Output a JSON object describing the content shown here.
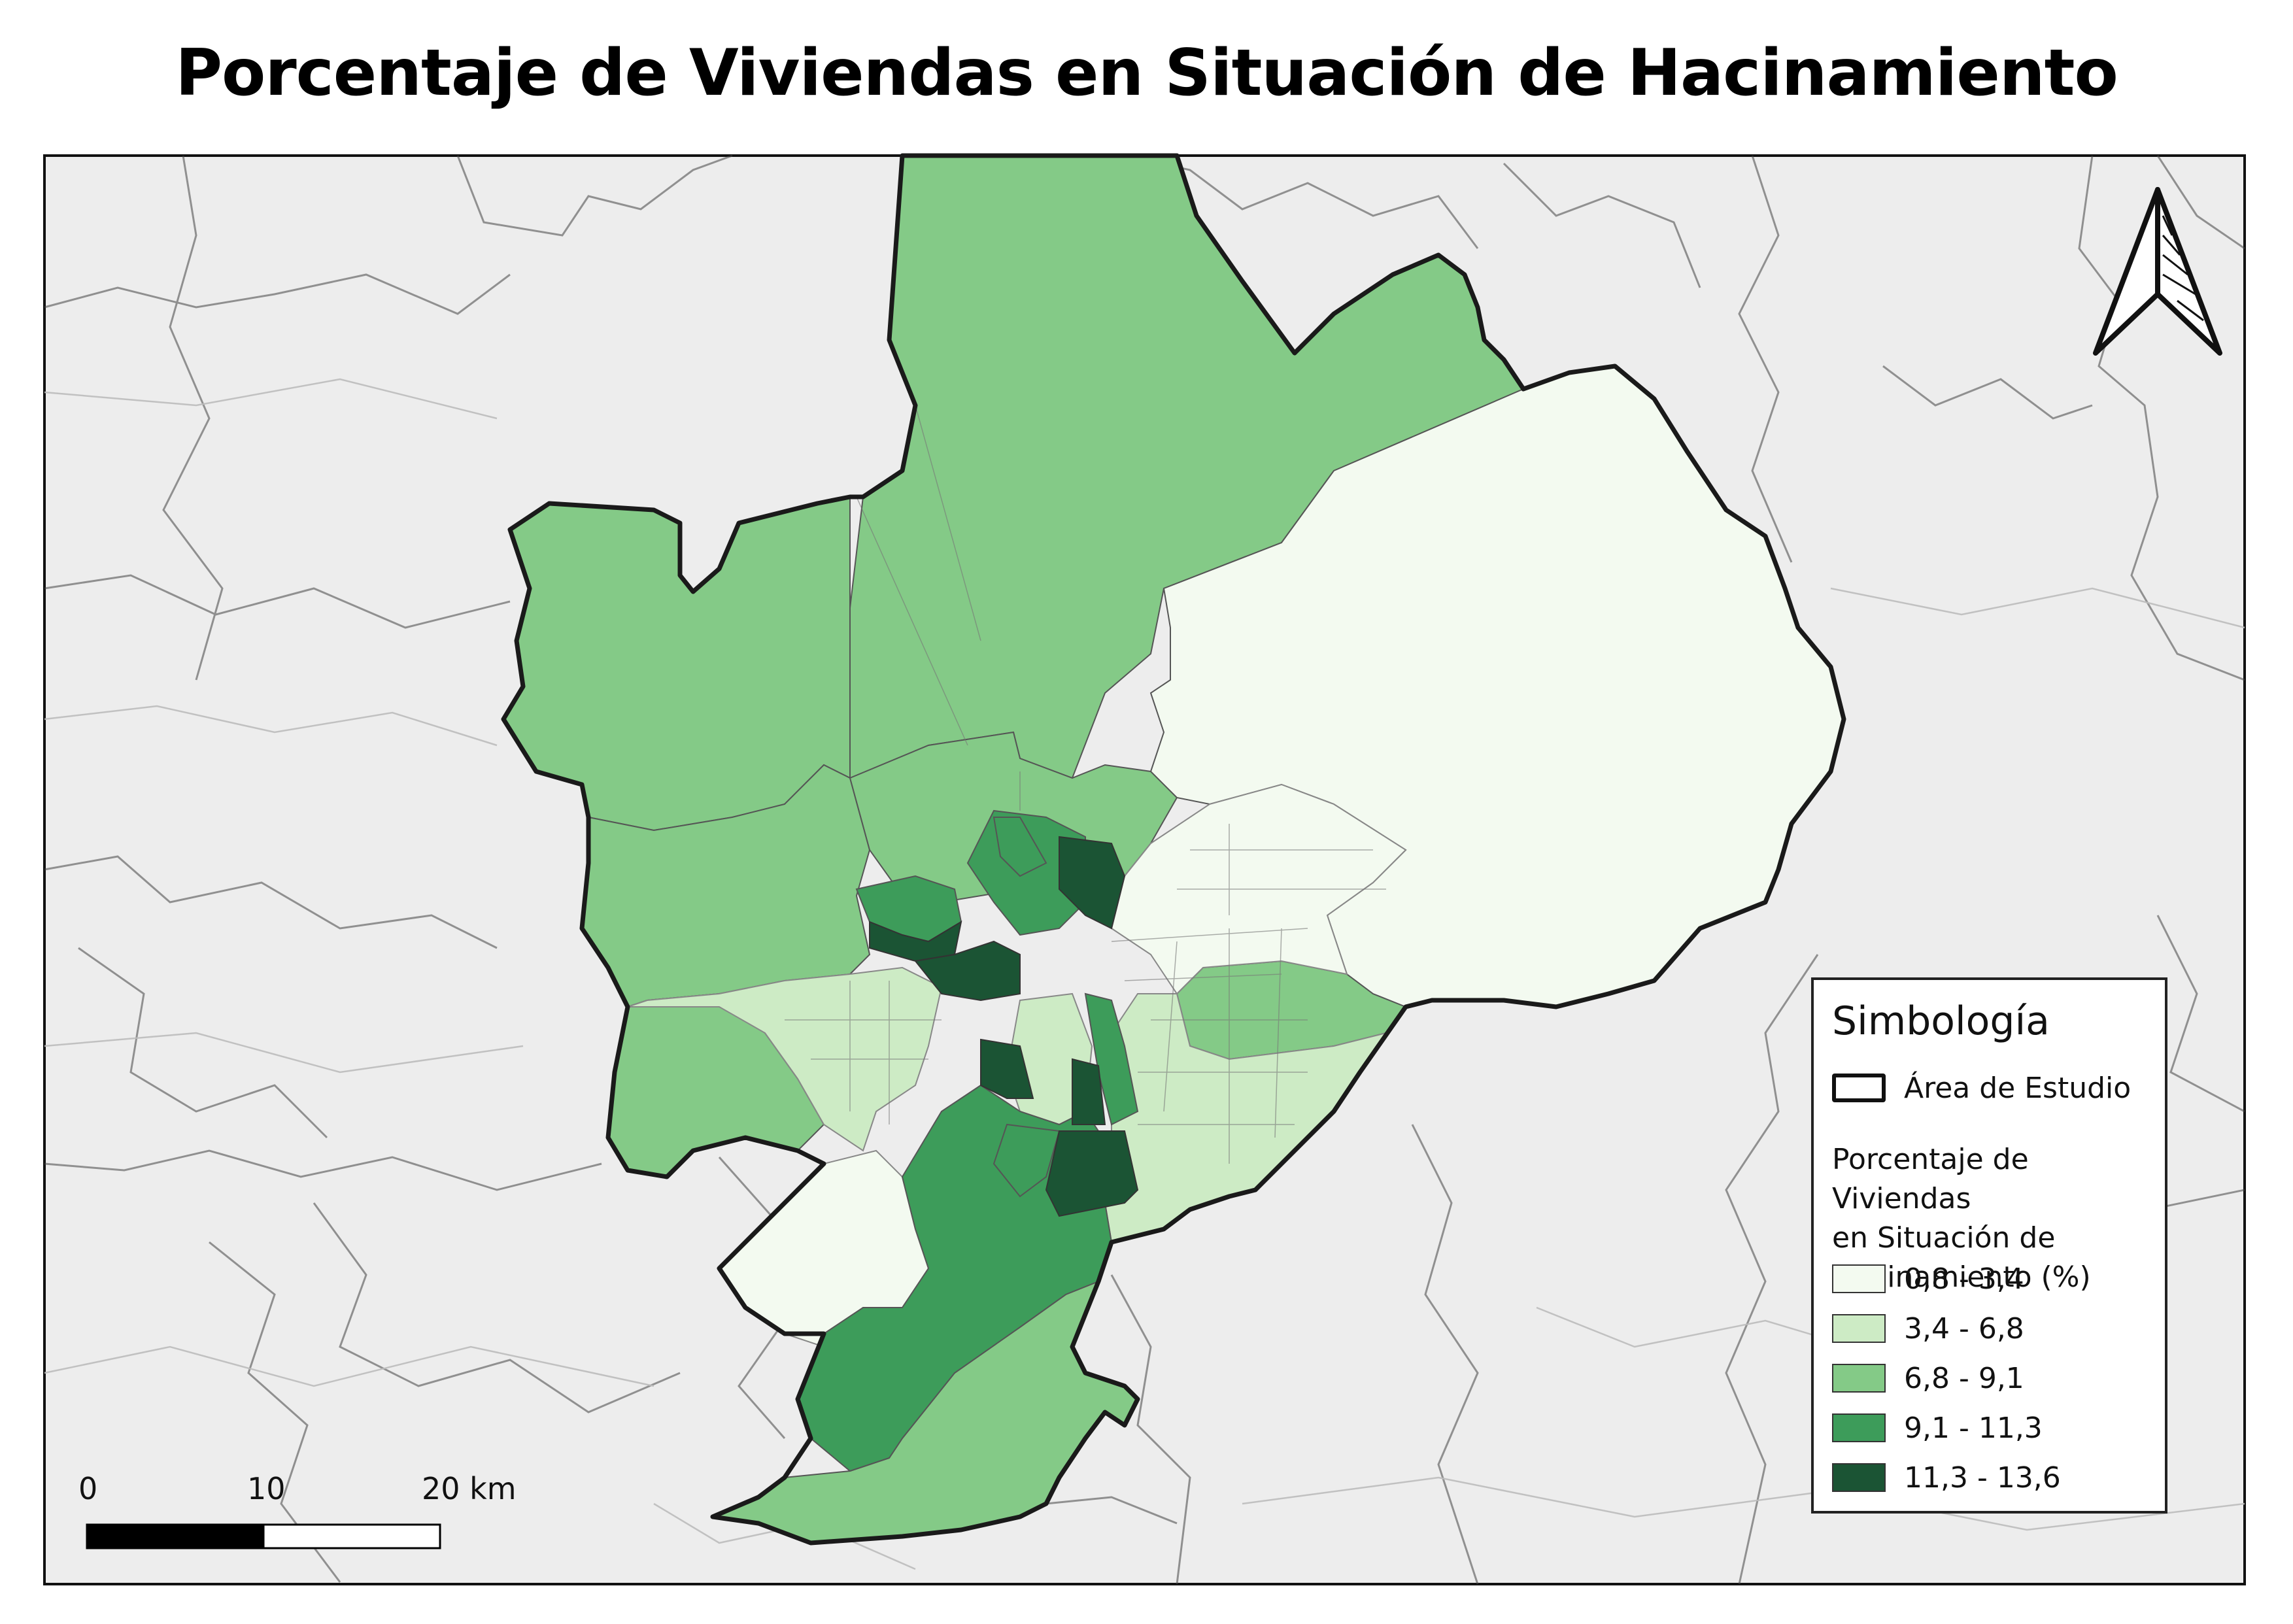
{
  "title": "Porcentaje de Viviendas en Situación de Hacinamiento",
  "colors": {
    "background": "#ececec",
    "study_outline": "#1a1a1a",
    "class_1": "#f3faf0",
    "class_2": "#cdebc5",
    "class_3": "#84ca87",
    "class_4": "#3d9c5a",
    "class_5": "#1b5434"
  },
  "north_arrow": {
    "icon": "north-arrow-icon"
  },
  "legend": {
    "title": "Simbología",
    "study_area_label": "Área de Estudio",
    "subtitle_lines": [
      "Porcentaje de Viviendas",
      "en Situación de",
      "Hacinamiento (%)"
    ],
    "classes": [
      {
        "label": "0,8 - 3,4",
        "color": "#f3faf0"
      },
      {
        "label": "3,4 - 6,8",
        "color": "#cdebc5"
      },
      {
        "label": "6,8 - 9,1",
        "color": "#84ca87"
      },
      {
        "label": "9,1 - 11,3",
        "color": "#3d9c5a"
      },
      {
        "label": "11,3 - 13,6",
        "color": "#1b5434"
      }
    ]
  },
  "scalebar": {
    "labels": [
      "0",
      "10",
      "20 km"
    ]
  }
}
